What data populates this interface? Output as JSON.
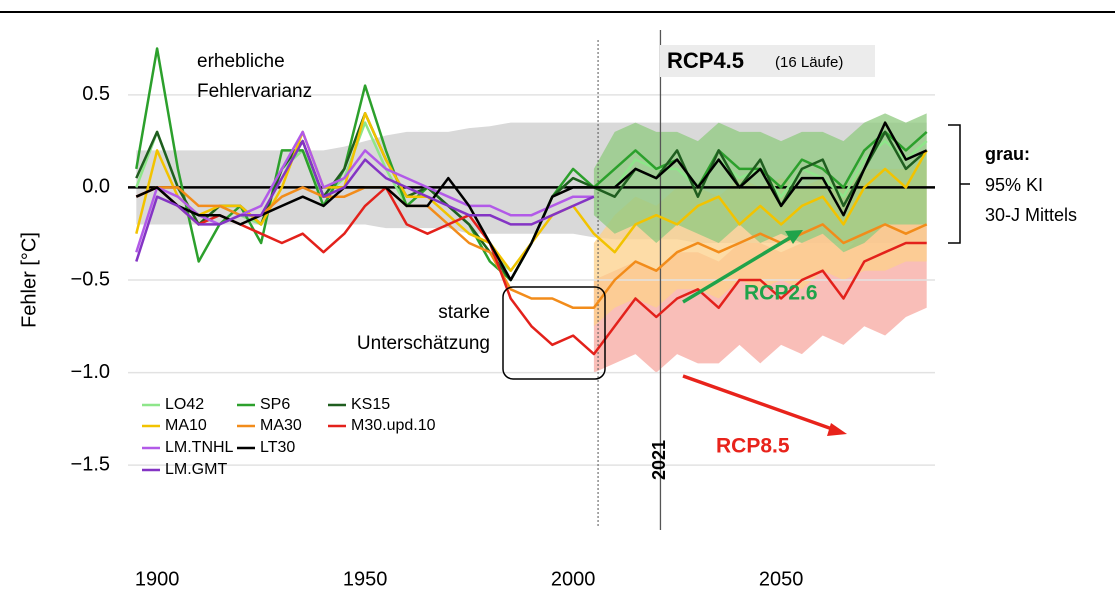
{
  "chart_data": {
    "type": "line",
    "ylabel": "Fehler [°C]",
    "xlim": [
      1893,
      2087
    ],
    "ylim": [
      -1.85,
      0.85
    ],
    "xticks": [
      1900,
      1950,
      2000,
      2050
    ],
    "yticks": [
      0.5,
      {
        "value": 0,
        "label": "0.0"
      },
      {
        "value": -0.5,
        "label": "−0.5"
      },
      {
        "value": -1,
        "label": "−1.0"
      },
      {
        "value": -1.5,
        "label": "−1.5"
      }
    ],
    "grid": true,
    "vline_dotted": 2006,
    "vline_solid": 2021,
    "x": [
      1895,
      1900,
      1905,
      1910,
      1915,
      1920,
      1925,
      1930,
      1935,
      1940,
      1945,
      1950,
      1955,
      1960,
      1965,
      1970,
      1975,
      1980,
      1985,
      1990,
      1995,
      2000,
      2005,
      2010,
      2015,
      2020,
      2025,
      2030,
      2035,
      2040,
      2045,
      2050,
      2055,
      2060,
      2065,
      2070,
      2075,
      2080,
      2085
    ],
    "bands": [
      {
        "color": "#d9d9d9",
        "upper": [
          0.2,
          0.2,
          0.2,
          0.2,
          0.2,
          0.2,
          0.2,
          0.2,
          0.2,
          0.2,
          0.22,
          0.25,
          0.28,
          0.3,
          0.3,
          0.3,
          0.32,
          0.33,
          0.35,
          0.35,
          0.35,
          0.35,
          0.35,
          0.35,
          0.35,
          0.35,
          0.35,
          0.35,
          0.35,
          0.35,
          0.35,
          0.35,
          0.35,
          0.35,
          0.35,
          0.35,
          0.35,
          0.35,
          0.35
        ],
        "lower": [
          -0.2,
          -0.2,
          -0.2,
          -0.2,
          -0.2,
          -0.2,
          -0.2,
          -0.2,
          -0.2,
          -0.2,
          -0.2,
          -0.2,
          -0.22,
          -0.22,
          -0.22,
          -0.22,
          -0.25,
          -0.25,
          -0.25,
          -0.25,
          -0.25,
          -0.25,
          -0.27,
          -0.28,
          -0.28,
          -0.28,
          -0.28,
          -0.3,
          -0.3,
          -0.3,
          -0.3,
          -0.3,
          -0.3,
          -0.3,
          -0.3,
          -0.3,
          -0.3,
          -0.3,
          -0.3
        ]
      },
      {
        "color": "#f7a8a0",
        "upper": [
          null,
          null,
          null,
          null,
          null,
          null,
          null,
          null,
          null,
          null,
          null,
          null,
          null,
          null,
          null,
          null,
          null,
          null,
          null,
          null,
          null,
          null,
          -0.5,
          -0.45,
          -0.4,
          -0.45,
          -0.35,
          -0.35,
          -0.4,
          -0.3,
          -0.3,
          -0.35,
          -0.3,
          -0.25,
          -0.35,
          -0.25,
          -0.2,
          -0.2,
          -0.2
        ],
        "lower": [
          null,
          null,
          null,
          null,
          null,
          null,
          null,
          null,
          null,
          null,
          null,
          null,
          null,
          null,
          null,
          null,
          null,
          null,
          null,
          null,
          null,
          null,
          -1.0,
          -0.95,
          -0.9,
          -1.0,
          -0.9,
          -0.95,
          -0.95,
          -0.85,
          -0.95,
          -0.85,
          -0.9,
          -0.8,
          -0.85,
          -0.75,
          -0.8,
          -0.7,
          -0.65
        ]
      },
      {
        "color": "#fcd08a",
        "upper": [
          null,
          null,
          null,
          null,
          null,
          null,
          null,
          null,
          null,
          null,
          null,
          null,
          null,
          null,
          null,
          null,
          null,
          null,
          null,
          null,
          null,
          null,
          -0.3,
          -0.15,
          -0.05,
          -0.1,
          0.0,
          0.0,
          -0.05,
          0.05,
          0.0,
          0.05,
          0.0,
          0.05,
          0.0,
          0.1,
          0.1,
          0.1,
          0.15
        ],
        "lower": [
          null,
          null,
          null,
          null,
          null,
          null,
          null,
          null,
          null,
          null,
          null,
          null,
          null,
          null,
          null,
          null,
          null,
          null,
          null,
          null,
          null,
          null,
          -0.75,
          -0.65,
          -0.6,
          -0.65,
          -0.55,
          -0.55,
          -0.6,
          -0.5,
          -0.55,
          -0.5,
          -0.55,
          -0.45,
          -0.5,
          -0.45,
          -0.45,
          -0.4,
          -0.4
        ]
      },
      {
        "color": "#8fc97f",
        "upper": [
          null,
          null,
          null,
          null,
          null,
          null,
          null,
          null,
          null,
          null,
          null,
          null,
          null,
          null,
          null,
          null,
          null,
          null,
          null,
          null,
          null,
          null,
          0.1,
          0.3,
          0.35,
          0.3,
          0.3,
          0.25,
          0.35,
          0.3,
          0.3,
          0.25,
          0.3,
          0.3,
          0.25,
          0.35,
          0.4,
          0.35,
          0.4
        ],
        "lower": [
          null,
          null,
          null,
          null,
          null,
          null,
          null,
          null,
          null,
          null,
          null,
          null,
          null,
          null,
          null,
          null,
          null,
          null,
          null,
          null,
          null,
          null,
          -0.15,
          -0.25,
          -0.2,
          -0.3,
          -0.2,
          -0.25,
          -0.3,
          -0.2,
          -0.3,
          -0.25,
          -0.3,
          -0.25,
          -0.35,
          -0.3,
          -0.2,
          -0.2,
          -0.2
        ]
      }
    ],
    "series": [
      {
        "name": "LO42",
        "color": "#8ee68a",
        "values": [
          0.0,
          0.3,
          0.0,
          -0.2,
          -0.1,
          -0.15,
          -0.2,
          0.1,
          0.2,
          -0.05,
          0.05,
          0.35,
          0.1,
          -0.1,
          0.0,
          -0.1,
          -0.2,
          -0.35,
          -0.45,
          -0.3,
          -0.05,
          0.05,
          0.0,
          0.0,
          0.15,
          0.1,
          0.1,
          0.0,
          0.15,
          0.05,
          0.1,
          -0.05,
          0.1,
          0.05,
          -0.05,
          0.15,
          0.25,
          0.15,
          0.25
        ]
      },
      {
        "name": "SP6",
        "color": "#2ca02c",
        "values": [
          0.1,
          0.75,
          0.1,
          -0.4,
          -0.2,
          -0.1,
          -0.3,
          0.2,
          0.2,
          -0.1,
          0.1,
          0.55,
          0.2,
          -0.1,
          0.0,
          -0.1,
          -0.2,
          -0.4,
          -0.5,
          -0.3,
          -0.05,
          0.1,
          0.0,
          0.1,
          0.2,
          0.1,
          0.15,
          0.0,
          0.2,
          0.1,
          0.1,
          0.0,
          0.15,
          0.1,
          0.0,
          0.2,
          0.3,
          0.2,
          0.3
        ]
      },
      {
        "name": "KS15",
        "color": "#1f5e1f",
        "values": [
          0.05,
          0.3,
          0.0,
          -0.2,
          -0.1,
          -0.1,
          -0.2,
          0.1,
          0.25,
          -0.05,
          0.1,
          0.4,
          0.15,
          -0.05,
          0.0,
          -0.1,
          -0.2,
          -0.35,
          -0.5,
          -0.3,
          -0.05,
          0.05,
          0.0,
          -0.05,
          0.1,
          0.05,
          0.2,
          -0.05,
          0.2,
          0.0,
          0.15,
          -0.1,
          0.1,
          0.15,
          -0.1,
          0.1,
          0.3,
          0.1,
          0.2
        ]
      },
      {
        "name": "MA10",
        "color": "#f2c300",
        "values": [
          -0.25,
          0.2,
          -0.05,
          -0.15,
          -0.1,
          -0.1,
          -0.2,
          0.0,
          0.3,
          0.0,
          0.0,
          0.4,
          0.15,
          -0.05,
          -0.05,
          -0.15,
          -0.25,
          -0.3,
          -0.45,
          -0.3,
          -0.15,
          -0.1,
          -0.25,
          -0.35,
          -0.2,
          -0.15,
          -0.2,
          -0.1,
          -0.05,
          -0.2,
          -0.1,
          -0.2,
          -0.1,
          -0.05,
          -0.2,
          0.0,
          0.1,
          0.0,
          0.2
        ]
      },
      {
        "name": "MA30",
        "color": "#f28c1a",
        "values": [
          -0.05,
          0.0,
          0.0,
          -0.1,
          -0.1,
          -0.15,
          -0.15,
          -0.05,
          0.0,
          -0.05,
          -0.05,
          0.0,
          0.0,
          -0.1,
          -0.1,
          -0.2,
          -0.3,
          -0.35,
          -0.55,
          -0.6,
          -0.6,
          -0.65,
          -0.65,
          -0.5,
          -0.4,
          -0.45,
          -0.35,
          -0.3,
          -0.35,
          -0.3,
          -0.25,
          -0.3,
          -0.25,
          -0.2,
          -0.3,
          -0.25,
          -0.2,
          -0.25,
          -0.2
        ]
      },
      {
        "name": "M30.upd.10",
        "color": "#e3211b",
        "values": [
          -0.05,
          0.0,
          -0.1,
          -0.2,
          -0.15,
          -0.2,
          -0.25,
          -0.3,
          -0.25,
          -0.35,
          -0.25,
          -0.1,
          0.0,
          -0.2,
          -0.25,
          -0.2,
          -0.15,
          -0.3,
          -0.6,
          -0.75,
          -0.85,
          -0.8,
          -0.9,
          -0.75,
          -0.6,
          -0.7,
          -0.6,
          -0.55,
          -0.65,
          -0.5,
          -0.5,
          -0.6,
          -0.5,
          -0.45,
          -0.6,
          -0.4,
          -0.35,
          -0.3,
          -0.3
        ]
      },
      {
        "name": "LM.TNHL",
        "color": "#b25ae8",
        "values": [
          -0.35,
          0.0,
          -0.05,
          -0.15,
          -0.2,
          -0.15,
          -0.1,
          0.1,
          0.3,
          0.0,
          0.05,
          0.2,
          0.1,
          0.05,
          0.0,
          -0.05,
          -0.1,
          -0.1,
          -0.15,
          -0.15,
          -0.1,
          -0.05,
          -0.05,
          null,
          null,
          null,
          null,
          null,
          null,
          null,
          null,
          null,
          null,
          null,
          null,
          null,
          null,
          null,
          null
        ]
      },
      {
        "name": "LT30",
        "color": "#000000",
        "values": [
          -0.05,
          0.0,
          -0.1,
          -0.15,
          -0.15,
          -0.2,
          -0.15,
          -0.1,
          -0.05,
          -0.1,
          0.0,
          0.0,
          0.0,
          -0.1,
          -0.1,
          0.05,
          -0.1,
          -0.3,
          -0.5,
          -0.3,
          -0.05,
          0.0,
          0.0,
          0.0,
          0.1,
          0.05,
          0.15,
          0.0,
          0.15,
          0.0,
          0.1,
          -0.1,
          0.05,
          0.05,
          -0.15,
          0.1,
          0.35,
          0.15,
          0.2
        ]
      },
      {
        "name": "LM.GMT",
        "color": "#8434c4",
        "values": [
          -0.4,
          -0.05,
          -0.1,
          -0.2,
          -0.2,
          -0.15,
          -0.15,
          0.05,
          0.25,
          -0.05,
          0.0,
          0.15,
          0.05,
          0.0,
          -0.05,
          -0.1,
          -0.15,
          -0.15,
          -0.2,
          -0.2,
          -0.15,
          -0.1,
          -0.05,
          null,
          null,
          null,
          null,
          null,
          null,
          null,
          null,
          null,
          null,
          null,
          null,
          null,
          null,
          null,
          null
        ]
      }
    ],
    "annotations": {
      "variance": [
        "erhebliche",
        "Fehlervarianz"
      ],
      "underestimate": [
        "starke",
        "Unterschätzung"
      ],
      "rcp45": "RCP4.5",
      "runs": "(16 Läufe)",
      "rcp26": "RCP2.6",
      "rcp85": "RCP8.5",
      "ci": [
        "grau:",
        "95% KI",
        "30-J Mittels"
      ]
    }
  }
}
